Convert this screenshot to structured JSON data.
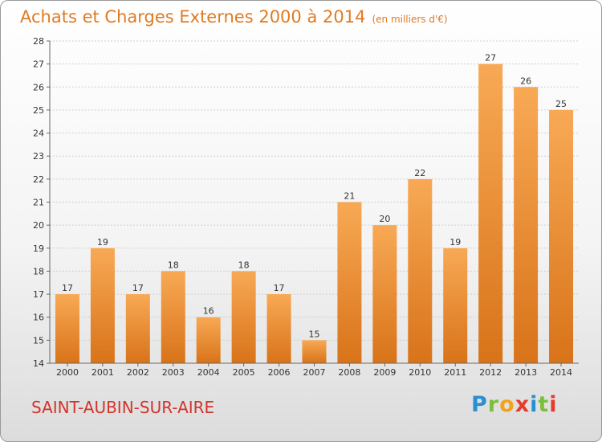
{
  "header": {
    "title": "Achats et Charges Externes 2000 à 2014",
    "unit": "(en milliers d'€)"
  },
  "footer": {
    "town": "SAINT-AUBIN-SUR-AIRE",
    "logo": "Proxiti"
  },
  "colors": {
    "title": "#e07b22",
    "town": "#d2342c",
    "bar_light": "#f8a955",
    "bar_dark": "#d87319"
  },
  "chart_data": {
    "type": "bar",
    "title": "Achats et Charges Externes 2000 à 2014",
    "subtitle": "(en milliers d'€)",
    "xlabel": "",
    "ylabel": "",
    "categories": [
      "2000",
      "2001",
      "2002",
      "2003",
      "2004",
      "2005",
      "2006",
      "2007",
      "2008",
      "2009",
      "2010",
      "2011",
      "2012",
      "2013",
      "2014"
    ],
    "values": [
      17,
      19,
      17,
      18,
      16,
      18,
      17,
      15,
      21,
      20,
      22,
      19,
      27,
      26,
      25
    ],
    "ylim": [
      14,
      28
    ],
    "yticks": [
      14,
      15,
      16,
      17,
      18,
      19,
      20,
      21,
      22,
      23,
      24,
      25,
      26,
      27,
      28
    ],
    "grid": true,
    "legend": "none"
  }
}
